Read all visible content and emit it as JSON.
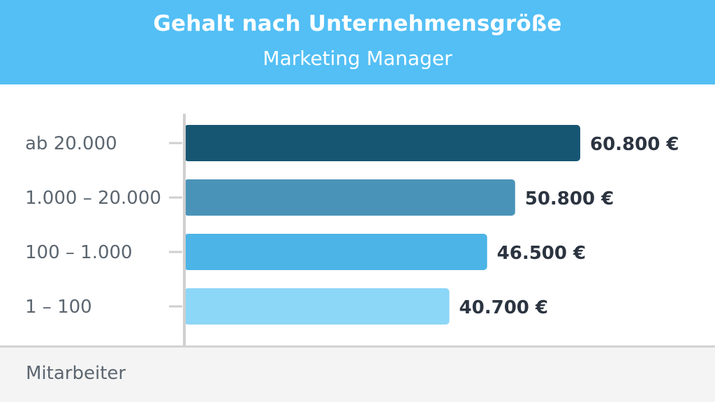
{
  "chart_data": {
    "type": "bar",
    "orientation": "horizontal",
    "title": "Gehalt nach Unternehmensgröße",
    "subtitle": "Marketing Manager",
    "xlabel": "",
    "ylabel": "Mitarbeiter",
    "categories": [
      "ab 20.000",
      "1.000 – 20.000",
      "100 – 1.000",
      "1 – 100"
    ],
    "values": [
      60800,
      50800,
      46500,
      40700
    ],
    "value_labels": [
      "60.800 €",
      "50.800 €",
      "46.500 €",
      "40.700 €"
    ],
    "colors": [
      "#175673",
      "#4a93b8",
      "#4cb4e6",
      "#8cd6f7"
    ],
    "xlim": [
      0,
      60800
    ],
    "grid": false,
    "legend": "none"
  },
  "colors": {
    "header_bg": "#53bff5",
    "axis": "#cfcfcf",
    "footer_bg": "#f4f4f4"
  }
}
